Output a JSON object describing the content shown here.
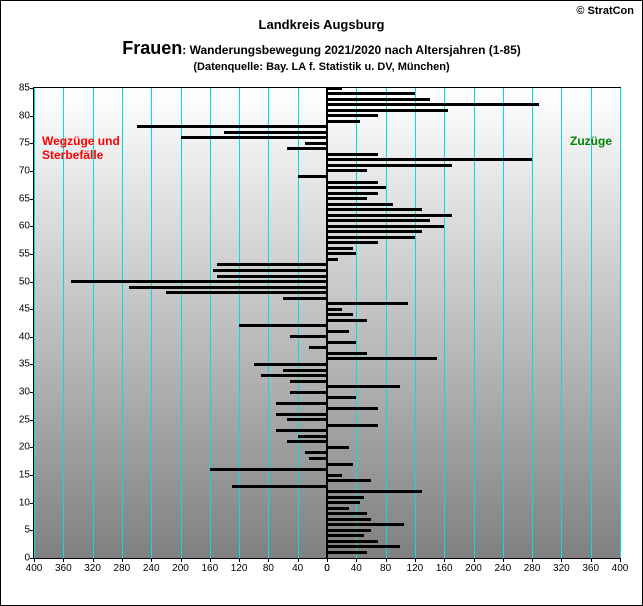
{
  "copyright": "© StratCon",
  "region_title": "Landkreis Augsburg",
  "main_title_big": "Frauen",
  "main_title_rest": ": Wanderungsbewegung 2021/2020 nach Altersjahren (1-85)",
  "source": "(Datenquelle: Bay. LA f. Statistik u. DV, München)",
  "label_left_line1": "Wegzüge und",
  "label_left_line2": "Sterbefälle",
  "label_right": "Zuzüge",
  "chart": {
    "type": "tornado-bar",
    "xlim_left": 400,
    "xlim_right": 400,
    "xtick_step": 40,
    "ylim": [
      0,
      85
    ],
    "ytick_step": 5,
    "grid_color": "#00e0e0",
    "bar_color": "#000000",
    "background_gradient": [
      "#ffffff",
      "#808080"
    ],
    "label_left_color": "#ff0000",
    "label_right_color": "#008000",
    "title_fontsize": 13,
    "main_title_big_fontsize": 18,
    "main_title_fontsize": 12,
    "source_fontsize": 11,
    "tick_fontsize": 10,
    "xticks_left": [
      400,
      360,
      320,
      280,
      240,
      200,
      160,
      120,
      80,
      40,
      0
    ],
    "xticks_right": [
      0,
      40,
      80,
      120,
      160,
      200,
      240,
      280,
      320,
      360,
      400
    ],
    "yticks": [
      0,
      5,
      10,
      15,
      20,
      25,
      30,
      35,
      40,
      45,
      50,
      55,
      60,
      65,
      70,
      75,
      80,
      85
    ],
    "data": [
      {
        "age": 1,
        "v": 55
      },
      {
        "age": 2,
        "v": 100
      },
      {
        "age": 3,
        "v": 70
      },
      {
        "age": 4,
        "v": 50
      },
      {
        "age": 5,
        "v": 60
      },
      {
        "age": 6,
        "v": 105
      },
      {
        "age": 7,
        "v": 60
      },
      {
        "age": 8,
        "v": 55
      },
      {
        "age": 9,
        "v": 30
      },
      {
        "age": 10,
        "v": 45
      },
      {
        "age": 11,
        "v": 50
      },
      {
        "age": 12,
        "v": 130
      },
      {
        "age": 13,
        "v": -130
      },
      {
        "age": 14,
        "v": 60
      },
      {
        "age": 15,
        "v": 20
      },
      {
        "age": 16,
        "v": -160
      },
      {
        "age": 17,
        "v": 35
      },
      {
        "age": 18,
        "v": -25
      },
      {
        "age": 19,
        "v": -30
      },
      {
        "age": 20,
        "v": 30
      },
      {
        "age": 21,
        "v": -55
      },
      {
        "age": 22,
        "v": -40
      },
      {
        "age": 23,
        "v": -70
      },
      {
        "age": 24,
        "v": 70
      },
      {
        "age": 25,
        "v": -55
      },
      {
        "age": 26,
        "v": -70
      },
      {
        "age": 27,
        "v": 70
      },
      {
        "age": 28,
        "v": -70
      },
      {
        "age": 29,
        "v": 40
      },
      {
        "age": 30,
        "v": -50
      },
      {
        "age": 31,
        "v": 100
      },
      {
        "age": 32,
        "v": -50
      },
      {
        "age": 33,
        "v": -90
      },
      {
        "age": 34,
        "v": -60
      },
      {
        "age": 35,
        "v": -100
      },
      {
        "age": 36,
        "v": 150
      },
      {
        "age": 37,
        "v": 55
      },
      {
        "age": 38,
        "v": -25
      },
      {
        "age": 39,
        "v": 40
      },
      {
        "age": 40,
        "v": -50
      },
      {
        "age": 41,
        "v": 30
      },
      {
        "age": 42,
        "v": -120
      },
      {
        "age": 43,
        "v": 55
      },
      {
        "age": 44,
        "v": 35
      },
      {
        "age": 45,
        "v": 20
      },
      {
        "age": 46,
        "v": 110
      },
      {
        "age": 47,
        "v": -60
      },
      {
        "age": 48,
        "v": -220
      },
      {
        "age": 49,
        "v": -270
      },
      {
        "age": 50,
        "v": -350
      },
      {
        "age": 51,
        "v": -150
      },
      {
        "age": 52,
        "v": -155
      },
      {
        "age": 53,
        "v": -150
      },
      {
        "age": 54,
        "v": 15
      },
      {
        "age": 55,
        "v": 40
      },
      {
        "age": 56,
        "v": 35
      },
      {
        "age": 57,
        "v": 70
      },
      {
        "age": 58,
        "v": 120
      },
      {
        "age": 59,
        "v": 130
      },
      {
        "age": 60,
        "v": 160
      },
      {
        "age": 61,
        "v": 140
      },
      {
        "age": 62,
        "v": 170
      },
      {
        "age": 63,
        "v": 130
      },
      {
        "age": 64,
        "v": 90
      },
      {
        "age": 65,
        "v": 55
      },
      {
        "age": 66,
        "v": 70
      },
      {
        "age": 67,
        "v": 80
      },
      {
        "age": 68,
        "v": 70
      },
      {
        "age": 69,
        "v": -40
      },
      {
        "age": 70,
        "v": 55
      },
      {
        "age": 71,
        "v": 170
      },
      {
        "age": 72,
        "v": 280
      },
      {
        "age": 73,
        "v": 70
      },
      {
        "age": 74,
        "v": -55
      },
      {
        "age": 75,
        "v": -30
      },
      {
        "age": 76,
        "v": -200
      },
      {
        "age": 77,
        "v": -140
      },
      {
        "age": 78,
        "v": -260
      },
      {
        "age": 79,
        "v": 45
      },
      {
        "age": 80,
        "v": 70
      },
      {
        "age": 81,
        "v": 165
      },
      {
        "age": 82,
        "v": 290
      },
      {
        "age": 83,
        "v": 140
      },
      {
        "age": 84,
        "v": 120
      },
      {
        "age": 85,
        "v": 20
      }
    ]
  }
}
